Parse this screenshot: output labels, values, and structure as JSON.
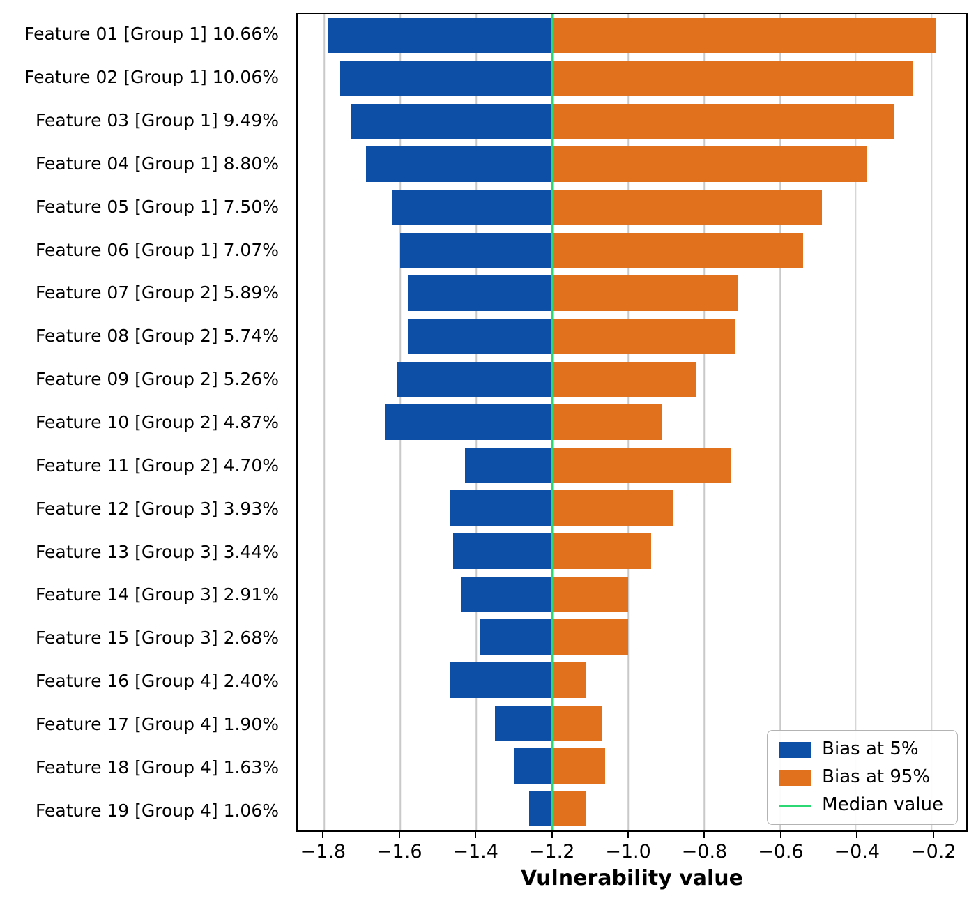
{
  "chart_data": {
    "type": "bar",
    "orientation": "horizontal",
    "xlabel": "Vulnerability value",
    "xlim": [
      -1.87,
      -0.11
    ],
    "x_ticks": [
      -1.8,
      -1.6,
      -1.4,
      -1.2,
      -1.0,
      -0.8,
      -0.6,
      -0.4,
      -0.2
    ],
    "x_tick_labels": [
      "−1.8",
      "−1.6",
      "−1.4",
      "−1.2",
      "−1.0",
      "−0.8",
      "−0.6",
      "−0.4",
      "−0.2"
    ],
    "median_value": -1.2,
    "grid": "vertical",
    "legend_position": "lower right",
    "legend": [
      {
        "label": "Bias at 5%",
        "color": "#0d4fa6",
        "type": "patch"
      },
      {
        "label": "Bias at 95%",
        "color": "#e2711d",
        "type": "patch"
      },
      {
        "label": "Median value",
        "color": "#2bd873",
        "type": "line"
      }
    ],
    "rows": [
      {
        "label": "Feature 01 [Group 1] 10.66%",
        "bias5": -1.79,
        "bias95": -0.19
      },
      {
        "label": "Feature 02 [Group 1] 10.06%",
        "bias5": -1.76,
        "bias95": -0.25
      },
      {
        "label": "Feature 03 [Group 1] 9.49%",
        "bias5": -1.73,
        "bias95": -0.3
      },
      {
        "label": "Feature 04 [Group 1] 8.80%",
        "bias5": -1.69,
        "bias95": -0.37
      },
      {
        "label": "Feature 05 [Group 1] 7.50%",
        "bias5": -1.62,
        "bias95": -0.49
      },
      {
        "label": "Feature 06 [Group 1] 7.07%",
        "bias5": -1.6,
        "bias95": -0.54
      },
      {
        "label": "Feature 07 [Group 2] 5.89%",
        "bias5": -1.58,
        "bias95": -0.71
      },
      {
        "label": "Feature 08 [Group 2] 5.74%",
        "bias5": -1.58,
        "bias95": -0.72
      },
      {
        "label": "Feature 09 [Group 2] 5.26%",
        "bias5": -1.61,
        "bias95": -0.82
      },
      {
        "label": "Feature 10 [Group 2] 4.87%",
        "bias5": -1.64,
        "bias95": -0.91
      },
      {
        "label": "Feature 11 [Group 2] 4.70%",
        "bias5": -1.43,
        "bias95": -0.73
      },
      {
        "label": "Feature 12 [Group 3] 3.93%",
        "bias5": -1.47,
        "bias95": -0.88
      },
      {
        "label": "Feature 13 [Group 3] 3.44%",
        "bias5": -1.46,
        "bias95": -0.94
      },
      {
        "label": "Feature 14 [Group 3] 2.91%",
        "bias5": -1.44,
        "bias95": -1.0
      },
      {
        "label": "Feature 15 [Group 3] 2.68%",
        "bias5": -1.39,
        "bias95": -1.0
      },
      {
        "label": "Feature 16 [Group 4] 2.40%",
        "bias5": -1.47,
        "bias95": -1.11
      },
      {
        "label": "Feature 17 [Group 4] 1.90%",
        "bias5": -1.35,
        "bias95": -1.07
      },
      {
        "label": "Feature 18 [Group 4] 1.63%",
        "bias5": -1.3,
        "bias95": -1.06
      },
      {
        "label": "Feature 19 [Group 4] 1.06%",
        "bias5": -1.26,
        "bias95": -1.11
      }
    ]
  }
}
